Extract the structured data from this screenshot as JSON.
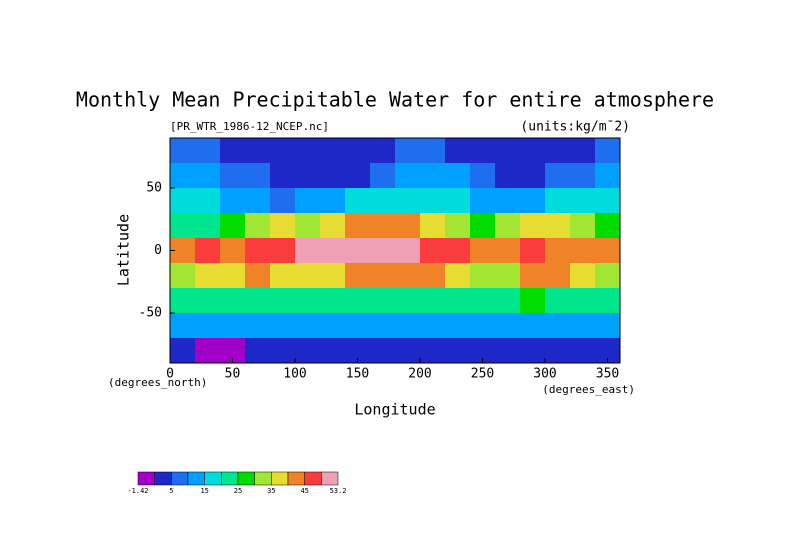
{
  "chart_data": {
    "type": "heatmap",
    "title": "Monthly Mean Precipitable Water for entire atmosphere",
    "subtitle": "[PR_WTR_1986-12_NCEP.nc]",
    "units": "(units:kg/m¯2)",
    "ylabel": "Latitude",
    "ylabel_unit": "(degrees_north)",
    "xlabel": "Longitude",
    "xlabel_unit": "(degrees_east)",
    "xlim": [
      0,
      360
    ],
    "ylim": [
      -90,
      90
    ],
    "xticks": [
      0,
      50,
      100,
      150,
      200,
      250,
      300,
      350
    ],
    "yticks": [
      -50,
      0,
      50
    ],
    "x": [
      0,
      20,
      40,
      60,
      80,
      100,
      120,
      140,
      160,
      180,
      200,
      220,
      240,
      260,
      280,
      300,
      320,
      340
    ],
    "y": [
      80,
      60,
      40,
      20,
      0,
      -20,
      -40,
      -60,
      -80
    ],
    "z": [
      [
        6,
        5,
        4,
        4,
        3,
        3,
        3,
        3,
        4,
        5,
        5,
        4,
        3,
        3,
        3,
        3,
        2,
        5
      ],
      [
        14,
        10,
        7,
        5,
        4,
        3,
        3,
        4,
        9,
        12,
        12,
        10,
        6,
        4,
        4,
        6,
        8,
        13
      ],
      [
        18,
        16,
        12,
        10,
        6,
        10,
        14,
        15,
        16,
        16,
        17,
        16,
        12,
        10,
        12,
        16,
        18,
        18
      ],
      [
        20,
        22,
        28,
        32,
        35,
        34,
        38,
        42,
        42,
        40,
        35,
        30,
        28,
        32,
        35,
        38,
        34,
        28
      ],
      [
        42,
        46,
        40,
        46,
        48,
        50,
        50,
        52,
        50,
        52,
        48,
        46,
        44,
        42,
        46,
        44,
        42,
        44
      ],
      [
        32,
        38,
        36,
        40,
        38,
        36,
        36,
        40,
        42,
        44,
        40,
        36,
        30,
        32,
        42,
        42,
        38,
        30
      ],
      [
        22,
        22,
        20,
        22,
        22,
        20,
        22,
        24,
        22,
        22,
        22,
        22,
        24,
        24,
        26,
        24,
        22,
        22
      ],
      [
        10,
        10,
        10,
        10,
        10,
        10,
        10,
        12,
        12,
        12,
        10,
        10,
        10,
        10,
        12,
        12,
        10,
        10
      ],
      [
        0,
        -1,
        -1,
        0,
        0,
        0,
        1,
        1,
        2,
        2,
        3,
        3,
        2,
        2,
        2,
        1,
        0,
        0
      ]
    ],
    "colorbar": {
      "levels": [
        -1.42,
        0,
        5,
        10,
        15,
        20,
        25,
        30,
        35,
        40,
        45,
        50,
        53.2
      ],
      "colors": [
        "#a000c8",
        "#1e28c8",
        "#1e6ef0",
        "#00a0ff",
        "#00dcdc",
        "#00e68c",
        "#00dc00",
        "#a0e632",
        "#e6dc32",
        "#f08228",
        "#fa3c3c",
        "#f0a0b4"
      ],
      "ticks": [
        -1.42,
        5,
        15,
        25,
        35,
        45,
        53.2
      ]
    }
  }
}
